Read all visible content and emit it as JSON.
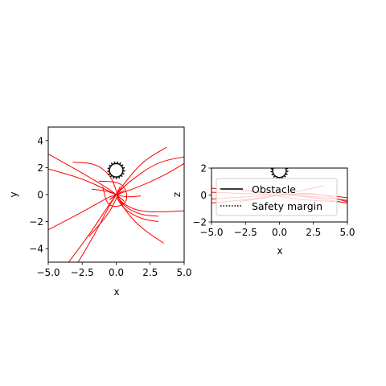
{
  "chart_data": [
    {
      "type": "line",
      "xlabel": "x",
      "ylabel": "y",
      "xlim": [
        -5,
        5
      ],
      "ylim": [
        -5,
        5
      ],
      "xticks": [
        "−5.0",
        "−2.5",
        "0.0",
        "2.5",
        "5.0"
      ],
      "xtick_values": [
        -5,
        -2.5,
        0,
        2.5,
        5
      ],
      "yticks": [
        "−4",
        "−2",
        "0",
        "2",
        "4"
      ],
      "ytick_values": [
        -4,
        -2,
        0,
        2,
        4
      ],
      "obstacle": {
        "cx": 0,
        "cy": 1.8,
        "r": 0.5,
        "margin_r": 0.6
      },
      "series_color": "#ff0000",
      "series": [
        {
          "points": [
            [
              -5,
              3
            ],
            [
              -2.5,
              1.6
            ],
            [
              -0.5,
              0.4
            ],
            [
              0,
              0
            ],
            [
              0.6,
              -0.5
            ]
          ]
        },
        {
          "points": [
            [
              -5,
              1.9
            ],
            [
              -2.5,
              1.2
            ],
            [
              -0.4,
              0.2
            ],
            [
              0,
              0
            ],
            [
              0.5,
              -0.4
            ]
          ]
        },
        {
          "points": [
            [
              -5,
              -2.6
            ],
            [
              -2.5,
              -1.3
            ],
            [
              -0.6,
              -0.2
            ],
            [
              0,
              0
            ],
            [
              0.6,
              0.3
            ]
          ]
        },
        {
          "points": [
            [
              -3.5,
              -5
            ],
            [
              -2,
              -3
            ],
            [
              -0.5,
              -0.7
            ],
            [
              0,
              0
            ],
            [
              0.3,
              0.6
            ]
          ]
        },
        {
          "points": [
            [
              -2.8,
              -5
            ],
            [
              -1.5,
              -2.8
            ],
            [
              -0.4,
              -0.6
            ],
            [
              0,
              0
            ],
            [
              0.4,
              0.5
            ]
          ]
        },
        {
          "points": [
            [
              -2,
              -3.1
            ],
            [
              -0.6,
              -1.5
            ],
            [
              0,
              -0.3
            ],
            [
              0.3,
              0.2
            ]
          ]
        },
        {
          "points": [
            [
              3.7,
              3.5
            ],
            [
              2,
              2.5
            ],
            [
              0.8,
              1.1
            ],
            [
              0,
              0
            ],
            [
              -0.3,
              -0.5
            ]
          ]
        },
        {
          "points": [
            [
              5,
              2.8
            ],
            [
              3,
              2.4
            ],
            [
              1,
              1
            ],
            [
              0,
              0
            ],
            [
              -0.5,
              -0.4
            ]
          ]
        },
        {
          "points": [
            [
              5,
              2.3
            ],
            [
              3.5,
              1.4
            ],
            [
              1.5,
              0.5
            ],
            [
              0,
              0
            ],
            [
              -0.4,
              -0.3
            ]
          ]
        },
        {
          "points": [
            [
              5,
              -1.2
            ],
            [
              3,
              -1.3
            ],
            [
              1.5,
              -1.2
            ],
            [
              0.4,
              -0.6
            ],
            [
              0,
              0
            ]
          ]
        },
        {
          "points": [
            [
              3.1,
              -1.6
            ],
            [
              1.8,
              -1.5
            ],
            [
              0.6,
              -0.9
            ],
            [
              0,
              0
            ]
          ]
        },
        {
          "points": [
            [
              3.1,
              -2
            ],
            [
              1.8,
              -1.8
            ],
            [
              0.6,
              -1.1
            ],
            [
              0,
              -0.2
            ]
          ]
        },
        {
          "points": [
            [
              3.5,
              -3.6
            ],
            [
              2,
              -2.6
            ],
            [
              0.8,
              -1.4
            ],
            [
              0,
              0
            ]
          ]
        },
        {
          "points": [
            [
              -3.2,
              2.4
            ],
            [
              -1.5,
              2.3
            ],
            [
              -0.4,
              1.4
            ],
            [
              0,
              0.3
            ],
            [
              0.2,
              -0.3
            ]
          ]
        },
        {
          "points": [
            [
              -1.8,
              0.4
            ],
            [
              -0.8,
              0.3
            ],
            [
              0,
              0
            ],
            [
              0.8,
              -0.2
            ],
            [
              1.8,
              -0.1
            ]
          ]
        },
        {
          "points": [
            [
              -1.3,
              1
            ],
            [
              0.6,
              0.9
            ],
            [
              0.9,
              -0.7
            ],
            [
              -0.6,
              -1
            ],
            [
              -1,
              0.6
            ]
          ]
        }
      ]
    },
    {
      "type": "line",
      "xlabel": "x",
      "ylabel": "z",
      "xlim": [
        -5,
        5
      ],
      "ylim": [
        -2,
        2
      ],
      "xticks": [
        "−5.0",
        "−2.5",
        "0.0",
        "2.5",
        "5.0"
      ],
      "xtick_values": [
        -5,
        -2.5,
        0,
        2.5,
        5
      ],
      "yticks": [
        "−2",
        "0",
        "2"
      ],
      "ytick_values": [
        -2,
        0,
        2
      ],
      "obstacle": {
        "cx": 0,
        "cy": 1.8,
        "r": 0.5,
        "margin_r": 0.6
      },
      "series_color": "#ff0000",
      "series": [
        {
          "points": [
            [
              -5,
              -0.3
            ],
            [
              -2,
              -0.1
            ],
            [
              0,
              0
            ],
            [
              2.5,
              0.1
            ],
            [
              5,
              -0.2
            ]
          ]
        },
        {
          "points": [
            [
              -5,
              0.2
            ],
            [
              -2,
              0.1
            ],
            [
              0,
              0
            ],
            [
              2.5,
              -0.1
            ],
            [
              5,
              -0.4
            ]
          ]
        },
        {
          "points": [
            [
              -5,
              -0.6
            ],
            [
              -2,
              -0.3
            ],
            [
              0,
              0
            ],
            [
              2.5,
              0.2
            ],
            [
              5,
              -0.5
            ]
          ]
        },
        {
          "points": [
            [
              -5,
              0.5
            ],
            [
              -2,
              0.3
            ],
            [
              0,
              0.1
            ],
            [
              2.5,
              -0.2
            ],
            [
              5,
              -0.6
            ]
          ]
        },
        {
          "points": [
            [
              -3,
              -0.5
            ],
            [
              -1,
              -0.2
            ],
            [
              0,
              0
            ],
            [
              2,
              0.4
            ],
            [
              3.3,
              0.7
            ]
          ]
        },
        {
          "points": [
            [
              -3,
              0.4
            ],
            [
              -1,
              0.1
            ],
            [
              0,
              -0.1
            ],
            [
              2,
              -0.4
            ],
            [
              4.5,
              -0.5
            ]
          ]
        }
      ],
      "legend": {
        "placement": "upper-left",
        "entries": [
          {
            "label": "Obstacle",
            "style": "solid"
          },
          {
            "label": "Safety margin",
            "style": "dotted"
          }
        ]
      }
    }
  ]
}
